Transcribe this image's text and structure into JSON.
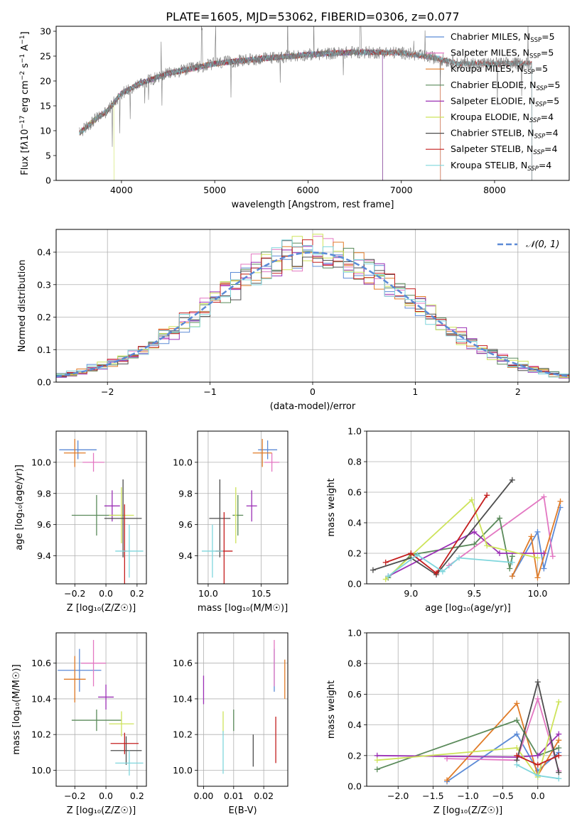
{
  "figure_title": "PLATE=1605, MJD=53062, FIBERID=0306, z=0.077",
  "colors": {
    "Chabrier MILES": "#5b8ad6",
    "Salpeter MILES": "#e377c2",
    "Kroupa MILES": "#e07b27",
    "Chabrier ELODIE": "#5a8a5a",
    "Salpeter ELODIE": "#9b30b5",
    "Kroupa ELODIE": "#cde35a",
    "Chabrier STELIB": "#4d4d4d",
    "Salpeter STELIB": "#c41e1e",
    "Kroupa STELIB": "#7fd6dc",
    "gaussian": "#5b8ad6"
  },
  "models": [
    "Chabrier MILES",
    "Salpeter MILES",
    "Kroupa MILES",
    "Chabrier ELODIE",
    "Salpeter ELODIE",
    "Kroupa ELODIE",
    "Chabrier STELIB",
    "Salpeter STELIB",
    "Kroupa STELIB"
  ],
  "chart_data": [
    {
      "id": "spectrum",
      "type": "line",
      "xlabel": "wavelength [Angstrom, rest frame]",
      "ylabel_pre": "Flux [f",
      "ylabel_mid": "10",
      "ylabel_exp1": "−17",
      "ylabel_mid2": " erg cm",
      "ylabel_exp2": "−2",
      "ylabel_mid3": " s",
      "ylabel_exp3": "−1",
      "ylabel_mid4": " A",
      "ylabel_exp4": "−1",
      "ylabel_post": "]",
      "xlim": [
        3300,
        8800
      ],
      "ylim": [
        0,
        31
      ],
      "xticks": [
        4000,
        5000,
        6000,
        7000,
        8000
      ],
      "yticks": [
        0,
        5,
        10,
        15,
        20,
        25,
        30
      ],
      "legend_placement": "right",
      "legend": [
        {
          "name": "Chabrier MILES",
          "n": "5"
        },
        {
          "name": "Salpeter MILES",
          "n": "5"
        },
        {
          "name": "Kroupa MILES",
          "n": "5"
        },
        {
          "name": "Chabrier ELODIE",
          "n": "5"
        },
        {
          "name": "Salpeter ELODIE",
          "n": "5"
        },
        {
          "name": "Kroupa ELODIE",
          "n": "4"
        },
        {
          "name": "Chabrier STELIB",
          "n": "4"
        },
        {
          "name": "Salpeter STELIB",
          "n": "4"
        },
        {
          "name": "Kroupa STELIB",
          "n": "4"
        }
      ],
      "legend_sub_prefix": "N",
      "legend_sub": "SSP",
      "continuum": [
        [
          3550,
          9.5
        ],
        [
          3700,
          12
        ],
        [
          3850,
          14
        ],
        [
          4000,
          17.5
        ],
        [
          4200,
          19.5
        ],
        [
          4500,
          21.5
        ],
        [
          5000,
          23.5
        ],
        [
          5500,
          24.5
        ],
        [
          6000,
          25.3
        ],
        [
          6500,
          25.8
        ],
        [
          7000,
          25.7
        ],
        [
          7400,
          24.5
        ],
        [
          7600,
          23.5
        ]
      ],
      "data_extent": [
        3550,
        8400
      ],
      "model_extents": [
        7420,
        7420,
        7420,
        6800,
        6800,
        3920,
        8400,
        8400,
        8400
      ]
    },
    {
      "id": "residuals",
      "type": "histogram",
      "xlabel": "(data-model)/error",
      "ylabel": "Normed distribution",
      "xlim": [
        -2.5,
        2.5
      ],
      "ylim": [
        0,
        0.47
      ],
      "xticks": [
        -2,
        -1,
        0,
        1,
        2
      ],
      "yticks": [
        0.0,
        0.1,
        0.2,
        0.3,
        0.4
      ],
      "bin_width": 0.1,
      "gaussian_label": "𝒩(0, 1)",
      "legend_placement": "top-right",
      "grid": true
    },
    {
      "id": "age-vs-Z",
      "type": "errorbar",
      "xlabel": "Z [log₁₀(Z/Z☉)]",
      "ylabel": "age  [log₁₀(age/yr)]",
      "xlim": [
        -0.32,
        0.26
      ],
      "ylim": [
        9.22,
        10.2
      ],
      "xticks": [
        -0.2,
        0.0,
        0.2
      ],
      "yticks": [
        9.4,
        9.6,
        9.8,
        10.0
      ],
      "points": [
        {
          "x": -0.18,
          "y": 10.08,
          "xe": 0.12,
          "ye": 0.06
        },
        {
          "x": -0.08,
          "y": 10.0,
          "xe": 0.07,
          "ye": 0.06
        },
        {
          "x": -0.2,
          "y": 10.06,
          "xe": 0.07,
          "ye": 0.09
        },
        {
          "x": -0.06,
          "y": 9.66,
          "xe": 0.16,
          "ye": 0.13
        },
        {
          "x": 0.04,
          "y": 9.72,
          "xe": 0.05,
          "ye": 0.1
        },
        {
          "x": 0.1,
          "y": 9.66,
          "xe": 0.08,
          "ye": 0.18
        },
        {
          "x": 0.11,
          "y": 9.64,
          "xe": 0.12,
          "ye": 0.25
        },
        {
          "x": 0.12,
          "y": 9.43,
          "xe": 0.01,
          "ye": 0.3
        },
        {
          "x": 0.15,
          "y": 9.43,
          "xe": 0.09,
          "ye": 0.17
        }
      ]
    },
    {
      "id": "age-vs-mass",
      "type": "errorbar",
      "xlabel": "mass [log₁₀(M/M☉)]",
      "ylabel": "",
      "xlim": [
        9.9,
        10.75
      ],
      "ylim": [
        9.22,
        10.2
      ],
      "xticks": [
        10.0,
        10.5
      ],
      "yticks": [
        9.4,
        9.6,
        9.8,
        10.0
      ],
      "points": [
        {
          "x": 10.56,
          "y": 10.08,
          "xe": 0.09,
          "ye": 0.06
        },
        {
          "x": 10.6,
          "y": 10.0,
          "xe": 0.07,
          "ye": 0.06
        },
        {
          "x": 10.51,
          "y": 10.06,
          "xe": 0.09,
          "ye": 0.09
        },
        {
          "x": 10.28,
          "y": 9.66,
          "xe": 0.05,
          "ye": 0.13
        },
        {
          "x": 10.41,
          "y": 9.72,
          "xe": 0.05,
          "ye": 0.1
        },
        {
          "x": 10.26,
          "y": 9.66,
          "xe": 0.01,
          "ye": 0.18
        },
        {
          "x": 10.11,
          "y": 9.64,
          "xe": 0.1,
          "ye": 0.25
        },
        {
          "x": 10.15,
          "y": 9.43,
          "xe": 0.08,
          "ye": 0.25
        },
        {
          "x": 10.04,
          "y": 9.43,
          "xe": 0.1,
          "ye": 0.17
        }
      ]
    },
    {
      "id": "mass-weight-vs-age",
      "type": "line",
      "xlabel": "age  [log₁₀(age/yr)]",
      "ylabel": "mass weight",
      "xlim": [
        8.65,
        10.25
      ],
      "ylim": [
        0,
        1.0
      ],
      "xticks": [
        9.0,
        9.5,
        10.0
      ],
      "yticks": [
        0.0,
        0.2,
        0.4,
        0.6,
        0.8,
        1.0
      ],
      "series": [
        {
          "points": [
            [
              9.8,
              0.05
            ],
            [
              10.0,
              0.34
            ],
            [
              10.05,
              0.1
            ],
            [
              10.18,
              0.5
            ]
          ]
        },
        {
          "points": [
            [
              9.3,
              0.12
            ],
            [
              10.05,
              0.57
            ],
            [
              10.12,
              0.18
            ]
          ]
        },
        {
          "points": [
            [
              9.8,
              0.05
            ],
            [
              9.95,
              0.31
            ],
            [
              10.0,
              0.04
            ],
            [
              10.18,
              0.54
            ]
          ]
        },
        {
          "points": [
            [
              8.82,
              0.04
            ],
            [
              9.0,
              0.19
            ],
            [
              9.5,
              0.26
            ],
            [
              9.7,
              0.43
            ],
            [
              9.78,
              0.1
            ],
            [
              9.8,
              0.18
            ]
          ]
        },
        {
          "points": [
            [
              8.82,
              0.05
            ],
            [
              9.5,
              0.34
            ],
            [
              9.7,
              0.2
            ],
            [
              10.05,
              0.2
            ]
          ]
        },
        {
          "points": [
            [
              8.8,
              0.03
            ],
            [
              9.48,
              0.55
            ],
            [
              9.6,
              0.25
            ],
            [
              10.0,
              0.17
            ]
          ]
        },
        {
          "points": [
            [
              8.7,
              0.09
            ],
            [
              9.0,
              0.17
            ],
            [
              9.2,
              0.06
            ],
            [
              9.8,
              0.68
            ]
          ]
        },
        {
          "points": [
            [
              8.8,
              0.14
            ],
            [
              9.0,
              0.2
            ],
            [
              9.2,
              0.07
            ],
            [
              9.6,
              0.58
            ]
          ]
        },
        {
          "points": [
            [
              8.82,
              0.05
            ],
            [
              9.05,
              0.19
            ],
            [
              9.25,
              0.08
            ],
            [
              9.38,
              0.17
            ],
            [
              9.8,
              0.14
            ]
          ]
        }
      ]
    },
    {
      "id": "mass-vs-Z",
      "type": "errorbar",
      "xlabel": "Z [log₁₀(Z/Z☉)]",
      "ylabel": "mass [log₁₀(M/M☉)]",
      "xlim": [
        -0.32,
        0.26
      ],
      "ylim": [
        9.91,
        10.77
      ],
      "xticks": [
        -0.2,
        0.0,
        0.2
      ],
      "yticks": [
        10.0,
        10.2,
        10.4,
        10.6
      ],
      "points": [
        {
          "x": -0.17,
          "y": 10.56,
          "xe": 0.14,
          "ye": 0.12
        },
        {
          "x": -0.08,
          "y": 10.6,
          "xe": 0.08,
          "ye": 0.13
        },
        {
          "x": -0.2,
          "y": 10.51,
          "xe": 0.07,
          "ye": 0.13
        },
        {
          "x": -0.06,
          "y": 10.28,
          "xe": 0.16,
          "ye": 0.06
        },
        {
          "x": 0.0,
          "y": 10.41,
          "xe": 0.05,
          "ye": 0.07
        },
        {
          "x": 0.1,
          "y": 10.26,
          "xe": 0.08,
          "ye": 0.07
        },
        {
          "x": 0.13,
          "y": 10.11,
          "xe": 0.1,
          "ye": 0.08
        },
        {
          "x": 0.12,
          "y": 10.15,
          "xe": 0.09,
          "ye": 0.06
        },
        {
          "x": 0.15,
          "y": 10.04,
          "xe": 0.09,
          "ye": 0.07
        }
      ]
    },
    {
      "id": "mass-vs-EBV",
      "type": "errorbar",
      "xlabel": "E(B-V)",
      "ylabel": "",
      "xlim": [
        -0.002,
        0.028
      ],
      "ylim": [
        9.91,
        10.77
      ],
      "xticks": [
        0.0,
        0.01,
        0.02
      ],
      "yticks": [
        10.0,
        10.2,
        10.4,
        10.6
      ],
      "points": [
        {
          "x": 0.0235,
          "y": 10.56,
          "xe": 0.0,
          "ye": 0.12
        },
        {
          "x": 0.0235,
          "y": 10.6,
          "xe": 0.0,
          "ye": 0.13
        },
        {
          "x": 0.027,
          "y": 10.51,
          "xe": 0.0,
          "ye": 0.11
        },
        {
          "x": 0.01,
          "y": 10.28,
          "xe": 0.0,
          "ye": 0.06
        },
        {
          "x": 0.0,
          "y": 10.45,
          "xe": 0.0,
          "ye": 0.08
        },
        {
          "x": 0.0065,
          "y": 10.27,
          "xe": 0.0,
          "ye": 0.06
        },
        {
          "x": 0.0165,
          "y": 10.11,
          "xe": 0.0,
          "ye": 0.09
        },
        {
          "x": 0.024,
          "y": 10.17,
          "xe": 0.0,
          "ye": 0.13
        },
        {
          "x": 0.0065,
          "y": 10.1,
          "xe": 0.0,
          "ye": 0.12
        }
      ]
    },
    {
      "id": "mass-weight-vs-Z",
      "type": "line",
      "xlabel": "Z [log₁₀(Z/Z☉)]",
      "ylabel": "mass weight",
      "xlim": [
        -2.45,
        0.45
      ],
      "ylim": [
        0,
        1.0
      ],
      "xticks": [
        -2.0,
        -1.5,
        -1.0,
        -0.5,
        0.0
      ],
      "yticks": [
        0.0,
        0.2,
        0.4,
        0.6,
        0.8,
        1.0
      ],
      "series": [
        {
          "points": [
            [
              -1.3,
              0.03
            ],
            [
              -0.3,
              0.34
            ],
            [
              0.0,
              0.1
            ],
            [
              0.3,
              0.22
            ]
          ]
        },
        {
          "points": [
            [
              -1.3,
              0.18
            ],
            [
              -0.3,
              0.17
            ],
            [
              0.0,
              0.57
            ],
            [
              0.3,
              0.1
            ]
          ]
        },
        {
          "points": [
            [
              -1.3,
              0.04
            ],
            [
              -0.3,
              0.54
            ],
            [
              0.0,
              0.07
            ],
            [
              0.3,
              0.3
            ]
          ]
        },
        {
          "points": [
            [
              -2.3,
              0.11
            ],
            [
              -0.3,
              0.43
            ],
            [
              0.0,
              0.2
            ],
            [
              0.3,
              0.25
            ]
          ]
        },
        {
          "points": [
            [
              -2.3,
              0.2
            ],
            [
              -0.3,
              0.19
            ],
            [
              0.0,
              0.2
            ],
            [
              0.3,
              0.34
            ]
          ]
        },
        {
          "points": [
            [
              -2.3,
              0.17
            ],
            [
              -0.3,
              0.25
            ],
            [
              0.0,
              0.06
            ],
            [
              0.3,
              0.55
            ]
          ]
        },
        {
          "points": [
            [
              -0.3,
              0.17
            ],
            [
              0.0,
              0.68
            ],
            [
              0.3,
              0.09
            ]
          ]
        },
        {
          "points": [
            [
              -0.3,
              0.2
            ],
            [
              0.0,
              0.14
            ],
            [
              0.3,
              0.2
            ]
          ]
        },
        {
          "points": [
            [
              -0.3,
              0.14
            ],
            [
              0.0,
              0.07
            ],
            [
              0.3,
              0.05
            ]
          ]
        }
      ]
    }
  ]
}
